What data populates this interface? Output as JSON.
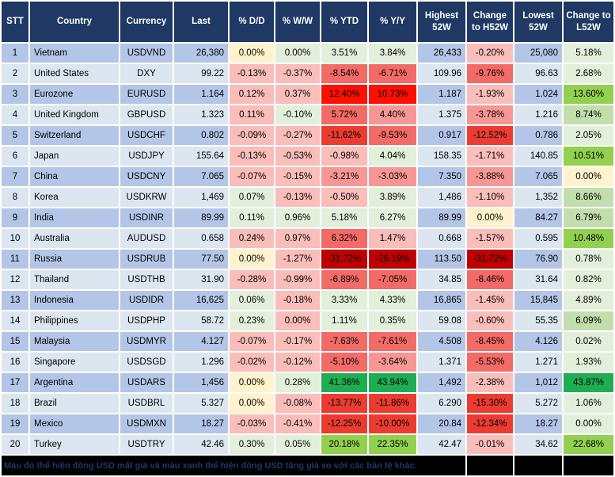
{
  "table": {
    "columns": [
      "STT",
      "Country",
      "Currency",
      "Last",
      "% D/D",
      "% W/W",
      "% YTD",
      "% Y/Y",
      "Highest 52W",
      "Change to H52W",
      "Lowest 52W",
      "Change to L52W"
    ],
    "rows": [
      {
        "stt": "1",
        "country": "Vietnam",
        "currency": "USDVND",
        "last": "26,380",
        "dd": {
          "v": "0.00%",
          "c": "y"
        },
        "ww": {
          "v": "0.00%",
          "c": "g1"
        },
        "ytd": {
          "v": "3.51%",
          "c": "g1"
        },
        "yy": {
          "v": "3.84%",
          "c": "g1"
        },
        "high": "26,433",
        "chg_h": {
          "v": "-0.20%",
          "c": "r1"
        },
        "low": "25,080",
        "chg_l": {
          "v": "5.18%",
          "c": "g1"
        }
      },
      {
        "stt": "2",
        "country": "United States",
        "currency": "DXY",
        "last": "99.22",
        "dd": {
          "v": "-0.13%",
          "c": "r1"
        },
        "ww": {
          "v": "-0.37%",
          "c": "r1"
        },
        "ytd": {
          "v": "-8.54%",
          "c": "r3"
        },
        "yy": {
          "v": "-6.71%",
          "c": "r3"
        },
        "high": "109.96",
        "chg_h": {
          "v": "-9.76%",
          "c": "r3"
        },
        "low": "96.63",
        "chg_l": {
          "v": "2.68%",
          "c": "g1"
        }
      },
      {
        "stt": "3",
        "country": "Eurozone",
        "currency": "EURUSD",
        "last": "1.164",
        "dd": {
          "v": "0.12%",
          "c": "r1"
        },
        "ww": {
          "v": "0.37%",
          "c": "r1"
        },
        "ytd": {
          "v": "12.40%",
          "c": "r5"
        },
        "yy": {
          "v": "10.73%",
          "c": "r5"
        },
        "high": "1.187",
        "chg_h": {
          "v": "-1.93%",
          "c": "r1"
        },
        "low": "1.024",
        "chg_l": {
          "v": "13.60%",
          "c": "g3"
        }
      },
      {
        "stt": "4",
        "country": "United Kingdom",
        "currency": "GBPUSD",
        "last": "1.323",
        "dd": {
          "v": "0.11%",
          "c": "r1"
        },
        "ww": {
          "v": "-0.10%",
          "c": "g1"
        },
        "ytd": {
          "v": "5.72%",
          "c": "r3"
        },
        "yy": {
          "v": "4.40%",
          "c": "r2"
        },
        "high": "1.375",
        "chg_h": {
          "v": "-3.78%",
          "c": "r2"
        },
        "low": "1.216",
        "chg_l": {
          "v": "8.74%",
          "c": "g2"
        }
      },
      {
        "stt": "5",
        "country": "Switzerland",
        "currency": "USDCHF",
        "last": "0.802",
        "dd": {
          "v": "-0.09%",
          "c": "r1"
        },
        "ww": {
          "v": "-0.27%",
          "c": "r1"
        },
        "ytd": {
          "v": "-11.62%",
          "c": "r4"
        },
        "yy": {
          "v": "-9.53%",
          "c": "r3"
        },
        "high": "0.917",
        "chg_h": {
          "v": "-12.52%",
          "c": "r4"
        },
        "low": "0.786",
        "chg_l": {
          "v": "2.05%",
          "c": "g1"
        }
      },
      {
        "stt": "6",
        "country": "Japan",
        "currency": "USDJPY",
        "last": "155.64",
        "dd": {
          "v": "-0.13%",
          "c": "r1"
        },
        "ww": {
          "v": "-0.53%",
          "c": "r1"
        },
        "ytd": {
          "v": "-0.98%",
          "c": "r1"
        },
        "yy": {
          "v": "4.04%",
          "c": "g1"
        },
        "high": "158.35",
        "chg_h": {
          "v": "-1.71%",
          "c": "r1"
        },
        "low": "140.85",
        "chg_l": {
          "v": "10.51%",
          "c": "g3"
        }
      },
      {
        "stt": "7",
        "country": "China",
        "currency": "USDCNY",
        "last": "7.065",
        "dd": {
          "v": "-0.07%",
          "c": "r1"
        },
        "ww": {
          "v": "-0.15%",
          "c": "r1"
        },
        "ytd": {
          "v": "-3.21%",
          "c": "r2"
        },
        "yy": {
          "v": "-3.03%",
          "c": "r2"
        },
        "high": "7.350",
        "chg_h": {
          "v": "-3.88%",
          "c": "r2"
        },
        "low": "7.065",
        "chg_l": {
          "v": "0.00%",
          "c": "y"
        }
      },
      {
        "stt": "8",
        "country": "Korea",
        "currency": "USDKRW",
        "last": "1,469",
        "dd": {
          "v": "0.07%",
          "c": "g1"
        },
        "ww": {
          "v": "-0.13%",
          "c": "r1"
        },
        "ytd": {
          "v": "-0.50%",
          "c": "r1"
        },
        "yy": {
          "v": "3.89%",
          "c": "g1"
        },
        "high": "1,486",
        "chg_h": {
          "v": "-1.10%",
          "c": "r1"
        },
        "low": "1,352",
        "chg_l": {
          "v": "8.66%",
          "c": "g2"
        }
      },
      {
        "stt": "9",
        "country": "India",
        "currency": "USDINR",
        "last": "89.99",
        "dd": {
          "v": "0.11%",
          "c": "g1"
        },
        "ww": {
          "v": "0.96%",
          "c": "g1"
        },
        "ytd": {
          "v": "5.18%",
          "c": "g1"
        },
        "yy": {
          "v": "6.27%",
          "c": "g1"
        },
        "high": "89.99",
        "chg_h": {
          "v": "0.00%",
          "c": "y"
        },
        "low": "84.27",
        "chg_l": {
          "v": "6.79%",
          "c": "g2"
        }
      },
      {
        "stt": "10",
        "country": "Australia",
        "currency": "AUDUSD",
        "last": "0.658",
        "dd": {
          "v": "0.24%",
          "c": "r1"
        },
        "ww": {
          "v": "0.97%",
          "c": "r1"
        },
        "ytd": {
          "v": "6.32%",
          "c": "r3"
        },
        "yy": {
          "v": "1.47%",
          "c": "r1"
        },
        "high": "0.668",
        "chg_h": {
          "v": "-1.57%",
          "c": "r1"
        },
        "low": "0.595",
        "chg_l": {
          "v": "10.48%",
          "c": "g3"
        }
      },
      {
        "stt": "11",
        "country": "Russia",
        "currency": "USDRUB",
        "last": "77.50",
        "dd": {
          "v": "0.00%",
          "c": "y"
        },
        "ww": {
          "v": "-1.27%",
          "c": "r1"
        },
        "ytd": {
          "v": "-31.72%",
          "c": "r6"
        },
        "yy": {
          "v": "-26.19%",
          "c": "r6"
        },
        "high": "113.50",
        "chg_h": {
          "v": "-31.72%",
          "c": "r6"
        },
        "low": "76.90",
        "chg_l": {
          "v": "0.78%",
          "c": "g1"
        }
      },
      {
        "stt": "12",
        "country": "Thailand",
        "currency": "USDTHB",
        "last": "31.90",
        "dd": {
          "v": "-0.28%",
          "c": "r1"
        },
        "ww": {
          "v": "-0.99%",
          "c": "r1"
        },
        "ytd": {
          "v": "-6.89%",
          "c": "r3"
        },
        "yy": {
          "v": "-7.05%",
          "c": "r3"
        },
        "high": "34.85",
        "chg_h": {
          "v": "-8.46%",
          "c": "r3"
        },
        "low": "31.64",
        "chg_l": {
          "v": "0.82%",
          "c": "g1"
        }
      },
      {
        "stt": "13",
        "country": "Indonesia",
        "currency": "USDIDR",
        "last": "16,625",
        "dd": {
          "v": "0.06%",
          "c": "g1"
        },
        "ww": {
          "v": "-0.18%",
          "c": "r1"
        },
        "ytd": {
          "v": "3.33%",
          "c": "g1"
        },
        "yy": {
          "v": "4.33%",
          "c": "g1"
        },
        "high": "16,865",
        "chg_h": {
          "v": "-1.45%",
          "c": "r1"
        },
        "low": "15,845",
        "chg_l": {
          "v": "4.89%",
          "c": "g1"
        }
      },
      {
        "stt": "14",
        "country": "Philippines",
        "currency": "USDPHP",
        "last": "58.72",
        "dd": {
          "v": "0.23%",
          "c": "g1"
        },
        "ww": {
          "v": "0.00%",
          "c": "r1"
        },
        "ytd": {
          "v": "1.11%",
          "c": "g1"
        },
        "yy": {
          "v": "0.35%",
          "c": "g1"
        },
        "high": "59.08",
        "chg_h": {
          "v": "-0.60%",
          "c": "r1"
        },
        "low": "55.35",
        "chg_l": {
          "v": "6.09%",
          "c": "g2"
        }
      },
      {
        "stt": "15",
        "country": "Malaysia",
        "currency": "USDMYR",
        "last": "4.127",
        "dd": {
          "v": "-0.07%",
          "c": "r1"
        },
        "ww": {
          "v": "-0.17%",
          "c": "r1"
        },
        "ytd": {
          "v": "-7.63%",
          "c": "r3"
        },
        "yy": {
          "v": "-7.61%",
          "c": "r3"
        },
        "high": "4.508",
        "chg_h": {
          "v": "-8.45%",
          "c": "r3"
        },
        "low": "4.126",
        "chg_l": {
          "v": "0.02%",
          "c": "g1"
        }
      },
      {
        "stt": "16",
        "country": "Singapore",
        "currency": "USDSGD",
        "last": "1.296",
        "dd": {
          "v": "-0.02%",
          "c": "r1"
        },
        "ww": {
          "v": "-0.12%",
          "c": "r1"
        },
        "ytd": {
          "v": "-5.10%",
          "c": "r3"
        },
        "yy": {
          "v": "-3.64%",
          "c": "r2"
        },
        "high": "1.371",
        "chg_h": {
          "v": "-5.53%",
          "c": "r3"
        },
        "low": "1.271",
        "chg_l": {
          "v": "1.93%",
          "c": "g1"
        }
      },
      {
        "stt": "17",
        "country": "Argentina",
        "currency": "USDARS",
        "last": "1,456",
        "dd": {
          "v": "0.00%",
          "c": "y"
        },
        "ww": {
          "v": "0.28%",
          "c": "g1"
        },
        "ytd": {
          "v": "41.36%",
          "c": "g4"
        },
        "yy": {
          "v": "43.94%",
          "c": "g4"
        },
        "high": "1,492",
        "chg_h": {
          "v": "-2.38%",
          "c": "r1"
        },
        "low": "1,012",
        "chg_l": {
          "v": "43.87%",
          "c": "g4"
        }
      },
      {
        "stt": "18",
        "country": "Brazil",
        "currency": "USDBRL",
        "last": "5.327",
        "dd": {
          "v": "0.00%",
          "c": "y"
        },
        "ww": {
          "v": "-0.08%",
          "c": "r1"
        },
        "ytd": {
          "v": "-13.77%",
          "c": "r4"
        },
        "yy": {
          "v": "-11.86%",
          "c": "r4"
        },
        "high": "6.290",
        "chg_h": {
          "v": "-15.30%",
          "c": "r4"
        },
        "low": "5.272",
        "chg_l": {
          "v": "1.06%",
          "c": "g1"
        }
      },
      {
        "stt": "19",
        "country": "Mexico",
        "currency": "USDMXN",
        "last": "18.27",
        "dd": {
          "v": "-0.03%",
          "c": "r1"
        },
        "ww": {
          "v": "-0.41%",
          "c": "r1"
        },
        "ytd": {
          "v": "-12.25%",
          "c": "r4"
        },
        "yy": {
          "v": "-10.00%",
          "c": "r4"
        },
        "high": "20.84",
        "chg_h": {
          "v": "-12.34%",
          "c": "r4"
        },
        "low": "18.27",
        "chg_l": {
          "v": "0.00%",
          "c": "g1"
        }
      },
      {
        "stt": "20",
        "country": "Turkey",
        "currency": "USDTRY",
        "last": "42.46",
        "dd": {
          "v": "0.30%",
          "c": "g1"
        },
        "ww": {
          "v": "0.05%",
          "c": "g1"
        },
        "ytd": {
          "v": "20.18%",
          "c": "g3"
        },
        "yy": {
          "v": "22.35%",
          "c": "g3"
        },
        "high": "42.47",
        "chg_h": {
          "v": "-0.01%",
          "c": "r1"
        },
        "low": "34.62",
        "chg_l": {
          "v": "22.68%",
          "c": "g3"
        }
      }
    ]
  },
  "footer": {
    "note": "Màu đỏ thể hiện đồng USD mất giá và màu xanh thể hiện đồng USD tăng giá so với các bản tệ khác."
  },
  "colors": {
    "header_bg": "#1F3864",
    "header_text": "#FFFFFF",
    "row_odd": "#B4C6E7",
    "row_even": "#DCE6F1",
    "grid": "#FFFFFF",
    "footer_bg": "#000000",
    "footer_text": "#1F3864",
    "scale": {
      "y": "#FFF2CC",
      "g1": "#E2EFDA",
      "g2": "#C2DEAD",
      "g3": "#92D050",
      "g4": "#1FAD53",
      "r1": "#F9BDBA",
      "r2": "#F79795",
      "r3": "#F26B66",
      "r4": "#EC3C32",
      "r5": "#FE1001",
      "r6": "#C00000"
    }
  }
}
